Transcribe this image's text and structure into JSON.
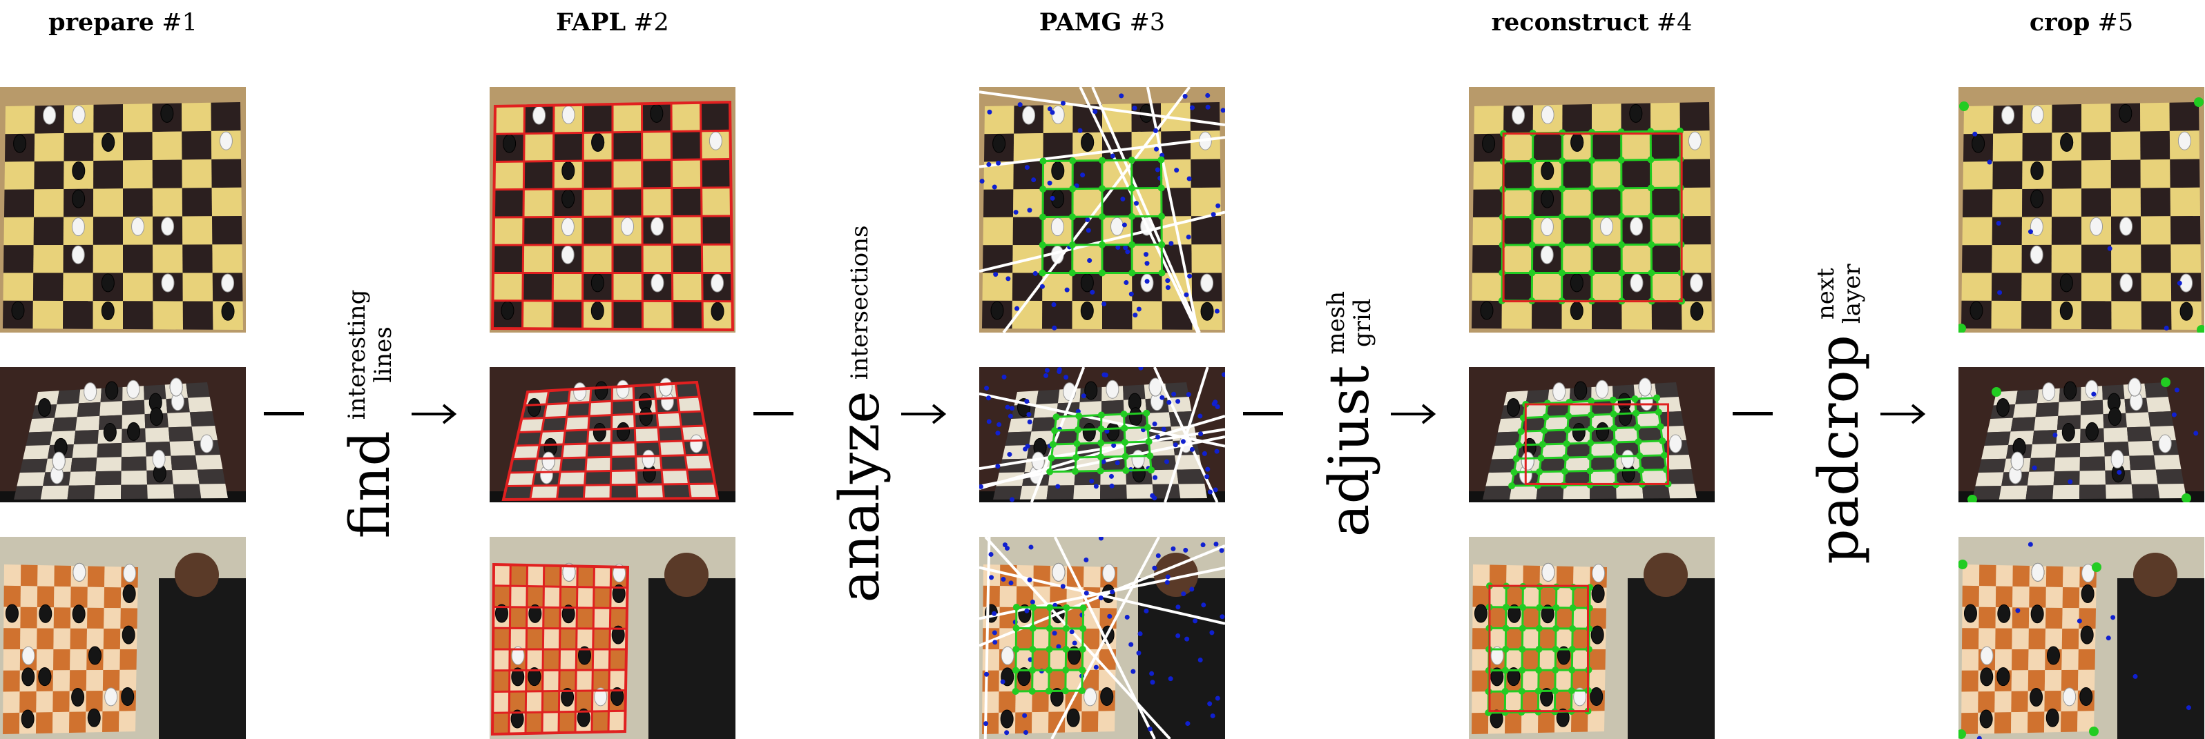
{
  "stages": [
    {
      "name": "prepare",
      "num": "#1"
    },
    {
      "name": "FAPL",
      "num": "#2"
    },
    {
      "name": "PAMG",
      "num": "#3"
    },
    {
      "name": "reconstruct",
      "num": "#4"
    },
    {
      "name": "crop",
      "num": "#5"
    }
  ],
  "transitions": [
    {
      "verb": "find",
      "words": [
        "interesting",
        "lines"
      ]
    },
    {
      "verb": "analyze",
      "words": [
        "intersections"
      ]
    },
    {
      "verb": "adjust",
      "words": [
        "mesh",
        "grid"
      ]
    },
    {
      "verb": "padcrop",
      "words": [
        "next",
        "layer"
      ]
    }
  ],
  "colors": {
    "board_light": "#e8d27a",
    "board_dark": "#2b1f1f",
    "board2_light": "#e8e2d2",
    "board2_dark": "#3b3636",
    "board3_light": "#f3d7b3",
    "board3_dark": "#d0722f",
    "lines_red": "#e02020",
    "points_blue": "#1020d0",
    "grid_green": "#22cc22",
    "lines_white": "#ffffff"
  }
}
